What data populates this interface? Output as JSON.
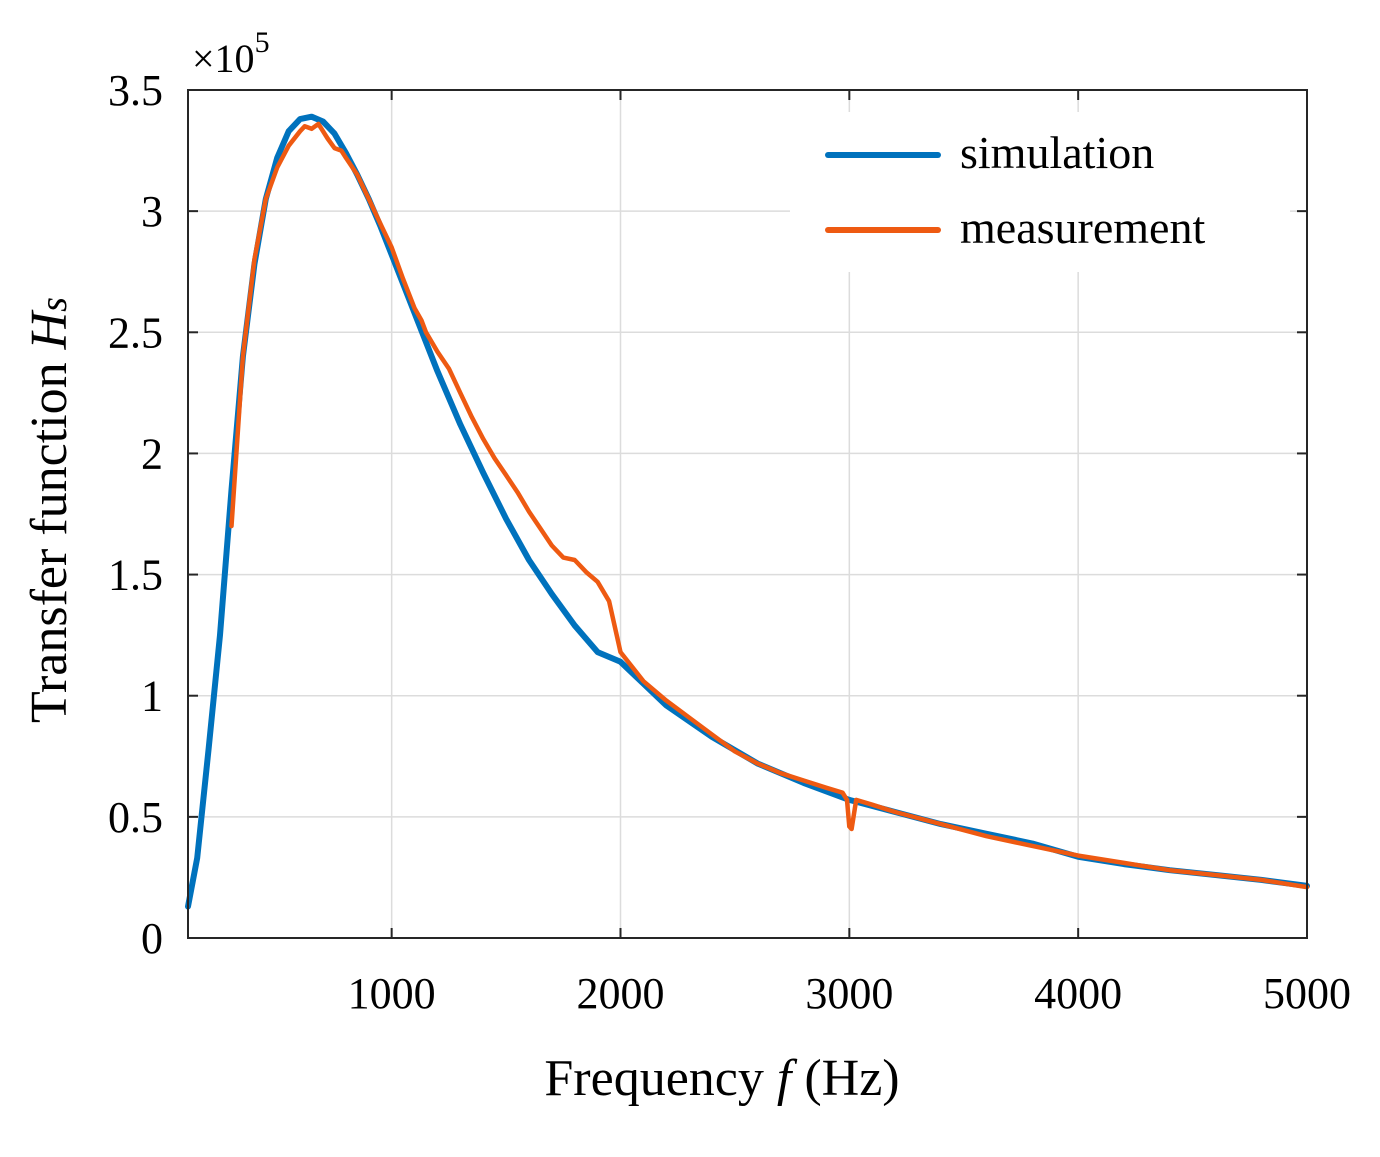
{
  "chart_data": {
    "type": "line",
    "title": "",
    "xlabel": "Frequency f (Hz)",
    "xlabel_parts": {
      "prefix": "Frequency ",
      "italic": "f",
      "suffix": " (Hz)"
    },
    "ylabel": "Transfer function Hs",
    "ylabel_parts": {
      "prefix": "Transfer function ",
      "italic_main": "H",
      "italic_sub": "s"
    },
    "y_multiplier": {
      "base": "×10",
      "exponent": "5"
    },
    "xlim": [
      110,
      5000
    ],
    "ylim": [
      0,
      3.5
    ],
    "xticks": [
      1000,
      2000,
      3000,
      4000,
      5000
    ],
    "xtick_labels": [
      "1000",
      "2000",
      "3000",
      "4000",
      "5000"
    ],
    "yticks": [
      0,
      0.5,
      1,
      1.5,
      2,
      2.5,
      3,
      3.5
    ],
    "ytick_labels": [
      "0",
      "0.5",
      "1",
      "1.5",
      "2",
      "2.5",
      "3",
      "3.5"
    ],
    "grid": true,
    "legend_position": "top-right",
    "series": [
      {
        "name": "simulation",
        "color": "#0072BD",
        "x": [
          110,
          150,
          200,
          250,
          300,
          350,
          400,
          450,
          500,
          550,
          600,
          650,
          700,
          750,
          800,
          850,
          900,
          950,
          1000,
          1100,
          1200,
          1300,
          1400,
          1500,
          1600,
          1700,
          1800,
          1900,
          2000,
          2200,
          2400,
          2600,
          2800,
          3000,
          3200,
          3400,
          3600,
          3800,
          4000,
          4200,
          4400,
          4600,
          4800,
          5000
        ],
        "y": [
          0.13,
          0.33,
          0.78,
          1.25,
          1.85,
          2.4,
          2.78,
          3.05,
          3.22,
          3.33,
          3.38,
          3.39,
          3.37,
          3.32,
          3.24,
          3.15,
          3.05,
          2.94,
          2.82,
          2.58,
          2.34,
          2.12,
          1.92,
          1.73,
          1.56,
          1.42,
          1.29,
          1.18,
          1.14,
          0.96,
          0.83,
          0.72,
          0.64,
          0.57,
          0.52,
          0.47,
          0.43,
          0.39,
          0.335,
          0.305,
          0.28,
          0.26,
          0.24,
          0.215
        ]
      },
      {
        "name": "measurement",
        "color": "#EE5A12",
        "x": [
          300,
          350,
          400,
          450,
          500,
          550,
          600,
          620,
          650,
          680,
          700,
          720,
          750,
          780,
          800,
          850,
          900,
          950,
          1000,
          1050,
          1100,
          1130,
          1150,
          1200,
          1250,
          1300,
          1350,
          1400,
          1450,
          1500,
          1550,
          1600,
          1650,
          1700,
          1750,
          1800,
          1850,
          1900,
          1950,
          2000,
          2100,
          2200,
          2300,
          2400,
          2500,
          2600,
          2700,
          2800,
          2900,
          2970,
          2990,
          3000,
          3010,
          3030,
          3100,
          3200,
          3400,
          3600,
          3800,
          4000,
          4200,
          4400,
          4600,
          4800,
          5000
        ],
        "y": [
          1.7,
          2.4,
          2.8,
          3.05,
          3.18,
          3.27,
          3.33,
          3.35,
          3.34,
          3.36,
          3.33,
          3.3,
          3.26,
          3.25,
          3.22,
          3.15,
          3.05,
          2.95,
          2.85,
          2.72,
          2.6,
          2.55,
          2.5,
          2.42,
          2.35,
          2.25,
          2.15,
          2.06,
          1.98,
          1.91,
          1.84,
          1.76,
          1.69,
          1.62,
          1.57,
          1.56,
          1.51,
          1.47,
          1.39,
          1.18,
          1.06,
          0.98,
          0.91,
          0.84,
          0.77,
          0.72,
          0.68,
          0.65,
          0.62,
          0.6,
          0.57,
          0.46,
          0.45,
          0.57,
          0.55,
          0.52,
          0.47,
          0.42,
          0.38,
          0.34,
          0.31,
          0.28,
          0.26,
          0.24,
          0.21
        ]
      }
    ]
  }
}
